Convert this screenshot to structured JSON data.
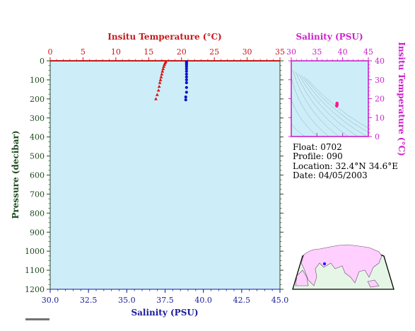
{
  "chart_data": [
    {
      "type": "scatter",
      "title": "",
      "x_top_label": "Insitu Temperature (°C)",
      "x_bottom_label": "Salinity (PSU)",
      "ylabel": "Pressure (decibar)",
      "x_top_range": [
        0,
        35
      ],
      "x_bottom_range": [
        30,
        45
      ],
      "y_range": [
        1200,
        0
      ],
      "x_top_ticks": [
        "0",
        "5",
        "10",
        "15",
        "20",
        "25",
        "30",
        "35"
      ],
      "x_bottom_ticks": [
        "30.0",
        "32.5",
        "35.0",
        "37.5",
        "40.0",
        "42.5",
        "45.0"
      ],
      "y_ticks": [
        "0",
        "100",
        "200",
        "300",
        "400",
        "500",
        "600",
        "700",
        "800",
        "900",
        "1000",
        "1100",
        "1200"
      ],
      "series": [
        {
          "axis": "temperature",
          "color": "#e01010",
          "marker": "triangle",
          "points": [
            [
              17.6,
              5
            ],
            [
              17.5,
              12
            ],
            [
              17.4,
              20
            ],
            [
              17.3,
              30
            ],
            [
              17.2,
              42
            ],
            [
              17.1,
              55
            ],
            [
              17.0,
              70
            ],
            [
              16.9,
              85
            ],
            [
              16.8,
              100
            ],
            [
              16.7,
              115
            ],
            [
              16.6,
              135
            ],
            [
              16.5,
              155
            ],
            [
              16.3,
              178
            ],
            [
              16.1,
              200
            ]
          ]
        },
        {
          "axis": "salinity",
          "color": "#1010c8",
          "marker": "circle",
          "points": [
            [
              38.9,
              5
            ],
            [
              38.9,
              12
            ],
            [
              38.9,
              20
            ],
            [
              38.9,
              30
            ],
            [
              38.9,
              42
            ],
            [
              38.9,
              55
            ],
            [
              38.9,
              70
            ],
            [
              38.9,
              85
            ],
            [
              38.9,
              100
            ],
            [
              38.9,
              115
            ],
            [
              38.9,
              140
            ],
            [
              38.9,
              165
            ],
            [
              38.85,
              190
            ],
            [
              38.85,
              205
            ]
          ]
        }
      ]
    },
    {
      "type": "scatter",
      "title": "",
      "xlabel": "Salinity (PSU)",
      "ylabel": "Insitu Temperature (°C)",
      "xlim": [
        30,
        45
      ],
      "ylim": [
        0,
        40
      ],
      "x_ticks": [
        "30",
        "35",
        "40",
        "45"
      ],
      "y_ticks": [
        "0",
        "10",
        "20",
        "30",
        "40"
      ],
      "series": [
        {
          "color": "#ff1493",
          "points": [
            [
              38.9,
              17.6
            ],
            [
              38.9,
              17.3
            ],
            [
              38.9,
              17.0
            ],
            [
              38.9,
              16.7
            ],
            [
              38.85,
              16.3
            ],
            [
              38.85,
              16.1
            ]
          ]
        }
      ]
    }
  ],
  "info": {
    "float": "Float:  0702",
    "profile": "Profile:  090",
    "location": "Location:  32.4°N  34.6°E",
    "date": "Date:  04/05/2003"
  },
  "colors": {
    "plot_bg": "#cdeef8",
    "temperature": "#e01010",
    "salinity": "#1010c8",
    "ts_frame": "#cc22cc",
    "map_land": "#ffcfff",
    "map_sea": "#e6f6e6",
    "float_marker": "#2222ff"
  }
}
